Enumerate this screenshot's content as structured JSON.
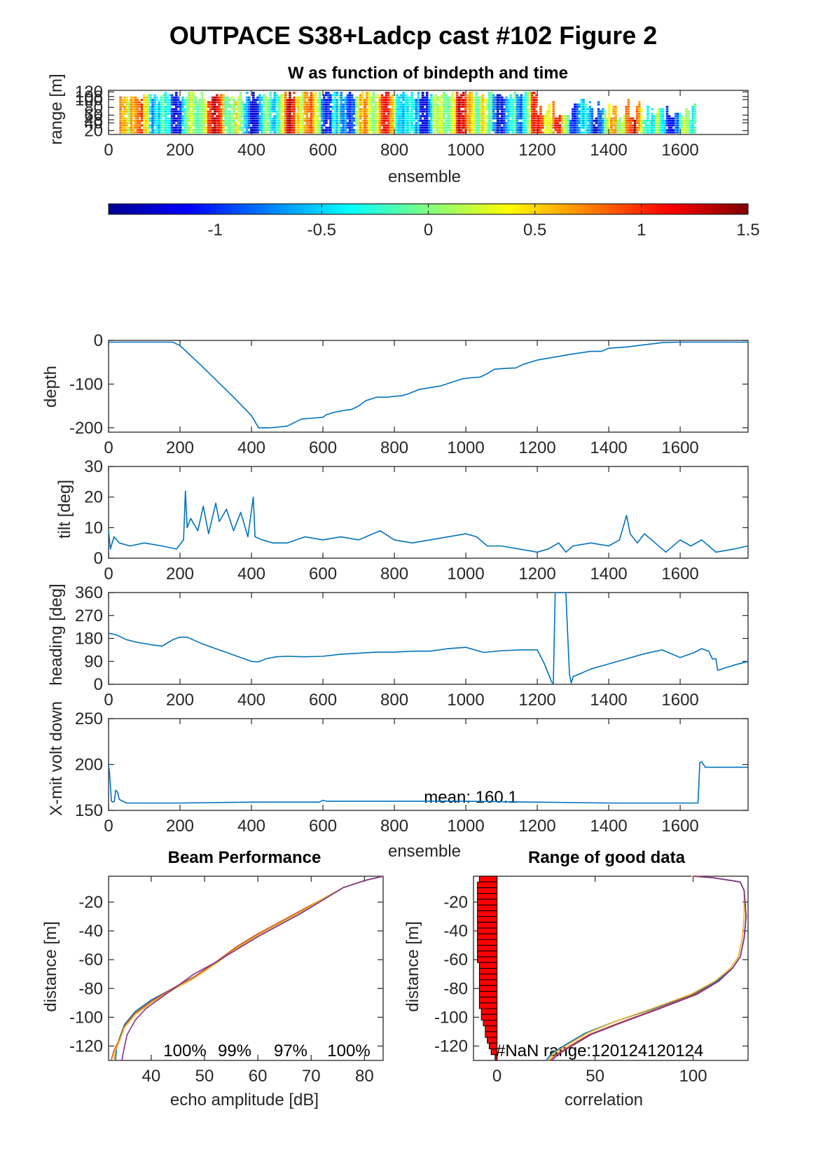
{
  "figure": {
    "title": "OUTPACE S38+Ladcp cast #102 Figure 2"
  },
  "colors": {
    "line": "#0072BD",
    "beam_colors": [
      "#0072BD",
      "#D95319",
      "#EDB120",
      "#7E2F8E"
    ],
    "bar": "#FF0000",
    "axis": "#262626"
  },
  "chart_data": [
    {
      "id": "w-image",
      "type": "heatmap",
      "title": "W as function of bindepth and time",
      "xlabel": "ensemble",
      "ylabel": "range [m]",
      "xlim": [
        0,
        1790
      ],
      "ylim": [
        10,
        124
      ],
      "xticks": [
        0,
        200,
        400,
        600,
        800,
        1000,
        1200,
        1400,
        1600
      ],
      "yticks": [
        20,
        40,
        48,
        60,
        80,
        100,
        108,
        120
      ],
      "ytick_labels": [
        "20",
        "40",
        "48",
        "60",
        "80",
        "100",
        "108",
        "120"
      ],
      "note": "color image of vertical velocity W; columns are ensembles, rows are range bins",
      "colorbar": {
        "clim": [
          -1.5,
          1.5
        ],
        "ticks": [
          -1,
          -0.5,
          0,
          0.5,
          1,
          1.5
        ],
        "tick_labels": [
          "-1",
          "-0.5",
          "0",
          "0.5",
          "1",
          "1.5"
        ]
      }
    },
    {
      "id": "depth",
      "type": "line",
      "ylabel": "depth",
      "xlim": [
        0,
        1790
      ],
      "ylim": [
        -210,
        0
      ],
      "xticks": [
        0,
        200,
        400,
        600,
        800,
        1000,
        1200,
        1400,
        1600
      ],
      "yticks": [
        0,
        -100,
        -200
      ],
      "x": [
        0,
        100,
        180,
        200,
        250,
        300,
        350,
        400,
        420,
        450,
        480,
        500,
        540,
        570,
        600,
        610,
        630,
        660,
        680,
        700,
        720,
        750,
        780,
        800,
        820,
        840,
        870,
        900,
        930,
        960,
        990,
        1020,
        1040,
        1060,
        1080,
        1110,
        1140,
        1160,
        1200,
        1250,
        1300,
        1350,
        1380,
        1400,
        1450,
        1500,
        1530,
        1550,
        1600,
        1700,
        1790
      ],
      "y": [
        -4,
        -4,
        -4,
        -12,
        -50,
        -90,
        -130,
        -172,
        -200,
        -200,
        -198,
        -196,
        -180,
        -178,
        -176,
        -170,
        -165,
        -160,
        -158,
        -150,
        -138,
        -130,
        -130,
        -128,
        -127,
        -122,
        -112,
        -108,
        -104,
        -96,
        -88,
        -85,
        -84,
        -76,
        -66,
        -64,
        -63,
        -55,
        -45,
        -38,
        -31,
        -25,
        -25,
        -18,
        -15,
        -10,
        -7,
        -5,
        -4,
        -4,
        -4
      ]
    },
    {
      "id": "tilt",
      "type": "line",
      "ylabel": "tilt [deg]",
      "xlim": [
        0,
        1790
      ],
      "ylim": [
        0,
        30
      ],
      "xticks": [
        0,
        200,
        400,
        600,
        800,
        1000,
        1200,
        1400,
        1600
      ],
      "yticks": [
        0,
        10,
        20,
        30
      ],
      "x": [
        0,
        5,
        15,
        30,
        60,
        100,
        150,
        190,
        210,
        215,
        220,
        230,
        250,
        265,
        280,
        300,
        310,
        330,
        350,
        370,
        390,
        405,
        410,
        430,
        460,
        500,
        550,
        600,
        650,
        700,
        740,
        760,
        800,
        850,
        900,
        950,
        1000,
        1030,
        1060,
        1100,
        1150,
        1200,
        1230,
        1260,
        1280,
        1300,
        1350,
        1400,
        1430,
        1450,
        1460,
        1480,
        1500,
        1530,
        1560,
        1600,
        1630,
        1660,
        1700,
        1750,
        1790
      ],
      "y": [
        9,
        3,
        7,
        5,
        4,
        5,
        4,
        3,
        6,
        22,
        10,
        13,
        9,
        17,
        8,
        18,
        12,
        16,
        9,
        15,
        7,
        20,
        7,
        6,
        5,
        5,
        7,
        6,
        7,
        6,
        8,
        9,
        6,
        5,
        6,
        7,
        8,
        7,
        4,
        4,
        3,
        2,
        3,
        5,
        2,
        4,
        5,
        4,
        6,
        14,
        8,
        5,
        8,
        5,
        2,
        6,
        4,
        6,
        2,
        3,
        4
      ]
    },
    {
      "id": "heading",
      "type": "line",
      "ylabel": "heading [deg]",
      "xlim": [
        0,
        1790
      ],
      "ylim": [
        0,
        360
      ],
      "xticks": [
        0,
        200,
        400,
        600,
        800,
        1000,
        1200,
        1400,
        1600
      ],
      "yticks": [
        0,
        90,
        180,
        270,
        360
      ],
      "x": [
        0,
        20,
        50,
        80,
        120,
        150,
        180,
        200,
        220,
        260,
        300,
        330,
        360,
        400,
        420,
        440,
        470,
        500,
        550,
        600,
        650,
        700,
        750,
        800,
        850,
        900,
        950,
        1000,
        1050,
        1100,
        1150,
        1200,
        1220,
        1240,
        1245,
        1250,
        1280,
        1285,
        1290,
        1295,
        1300,
        1350,
        1400,
        1450,
        1500,
        1550,
        1600,
        1640,
        1660,
        1680,
        1690,
        1700,
        1705,
        1750,
        1790
      ],
      "y": [
        200,
        195,
        175,
        165,
        155,
        150,
        175,
        185,
        185,
        160,
        140,
        125,
        110,
        90,
        88,
        100,
        108,
        110,
        108,
        110,
        118,
        122,
        126,
        126,
        130,
        130,
        140,
        145,
        125,
        132,
        135,
        135,
        80,
        10,
        2,
        360,
        360,
        200,
        40,
        5,
        30,
        60,
        80,
        100,
        120,
        135,
        105,
        125,
        140,
        130,
        100,
        100,
        55,
        75,
        90
      ]
    },
    {
      "id": "xmit-volt",
      "type": "line",
      "ylabel": "X-mit volt down",
      "xlabel": "ensemble",
      "annotation": "mean: 160.1",
      "xlim": [
        0,
        1790
      ],
      "ylim": [
        150,
        250
      ],
      "xticks": [
        0,
        200,
        400,
        600,
        800,
        1000,
        1200,
        1400,
        1600
      ],
      "yticks": [
        150,
        200,
        250
      ],
      "x": [
        0,
        3,
        8,
        12,
        16,
        20,
        25,
        30,
        40,
        50,
        60,
        80,
        200,
        400,
        590,
        600,
        610,
        800,
        1000,
        1200,
        1400,
        1640,
        1650,
        1655,
        1660,
        1670,
        1700,
        1790
      ],
      "y": [
        200,
        190,
        160,
        159,
        160,
        172,
        170,
        162,
        160,
        158,
        158,
        158,
        158,
        159,
        159,
        161,
        160,
        160,
        160,
        159,
        158,
        158,
        158,
        202,
        203,
        197,
        197,
        197
      ]
    },
    {
      "id": "beam-performance",
      "type": "line",
      "title": "Beam Performance",
      "xlabel": "echo amplitude [dB]",
      "ylabel": "distance [m]",
      "xlim": [
        32,
        83.5
      ],
      "ylim": [
        -130,
        -2
      ],
      "xticks": [
        40,
        50,
        60,
        70,
        80
      ],
      "yticks": [
        -20,
        -40,
        -60,
        -80,
        -100,
        -120
      ],
      "annotations": [
        "100%",
        "99%",
        "97%",
        "100%"
      ],
      "series": [
        {
          "x": [
            83.5,
            80,
            76,
            72,
            68,
            64,
            60,
            56,
            52,
            48,
            44,
            40,
            37,
            35,
            34,
            33.5,
            33.3
          ],
          "y": [
            -2,
            -5,
            -10,
            -18,
            -27,
            -35,
            -43,
            -52,
            -62,
            -72,
            -80,
            -88,
            -96,
            -105,
            -115,
            -122,
            -130
          ]
        },
        {
          "x": [
            83.5,
            80,
            76,
            72,
            68,
            64,
            60,
            56,
            52,
            48,
            44,
            40,
            37,
            35,
            34,
            33,
            32.5
          ],
          "y": [
            -2,
            -5,
            -10,
            -18,
            -26,
            -34,
            -42,
            -51,
            -62,
            -72,
            -80,
            -89,
            -97,
            -106,
            -116,
            -123,
            -130
          ]
        },
        {
          "x": [
            83.5,
            80,
            76,
            72,
            68,
            64,
            60,
            56,
            52,
            48,
            44,
            40,
            37,
            35,
            34,
            33.2,
            33
          ],
          "y": [
            -2,
            -5,
            -10,
            -18,
            -27,
            -35,
            -43,
            -52,
            -63,
            -73,
            -81,
            -90,
            -98,
            -107,
            -117,
            -124,
            -130
          ]
        },
        {
          "x": [
            83.5,
            80,
            76,
            72,
            68,
            64,
            60,
            56,
            52,
            48,
            45,
            42,
            39,
            37,
            35.5,
            35,
            34.5
          ],
          "y": [
            -2,
            -5,
            -10,
            -19,
            -28,
            -36,
            -44,
            -53,
            -62,
            -70,
            -78,
            -86,
            -94,
            -102,
            -112,
            -120,
            -130
          ]
        }
      ]
    },
    {
      "id": "range-good-data",
      "type": "line",
      "title": "Range of good data",
      "xlabel": "correlation",
      "ylabel": "distance [m]",
      "annotation": "#NaN range:120124120124",
      "xlim": [
        -12,
        128
      ],
      "ylim": [
        -130,
        -2
      ],
      "xticks": [
        0,
        50,
        100
      ],
      "yticks": [
        -20,
        -40,
        -60,
        -80,
        -100,
        -120
      ],
      "series": [
        {
          "x": [
            100,
            110,
            124,
            126,
            127,
            126,
            124,
            120,
            112,
            100,
            80,
            60,
            45,
            35,
            28,
            25
          ],
          "y": [
            -2,
            -3,
            -6,
            -12,
            -30,
            -45,
            -58,
            -66,
            -75,
            -84,
            -94,
            -103,
            -111,
            -119,
            -125,
            -130
          ]
        },
        {
          "x": [
            101,
            110,
            124,
            126,
            127,
            126,
            124,
            120,
            113,
            101,
            82,
            62,
            47,
            37,
            30,
            27
          ],
          "y": [
            -2,
            -3,
            -6,
            -12,
            -30,
            -45,
            -58,
            -66,
            -75,
            -84,
            -94,
            -104,
            -112,
            -120,
            -126,
            -130
          ]
        },
        {
          "x": [
            99,
            110,
            124,
            126,
            126,
            125,
            123,
            119,
            111,
            99,
            79,
            60,
            46,
            36,
            29,
            26
          ],
          "y": [
            -2,
            -3,
            -6,
            -12,
            -30,
            -45,
            -58,
            -66,
            -75,
            -84,
            -94,
            -103,
            -111,
            -119,
            -125,
            -130
          ]
        },
        {
          "x": [
            100,
            110,
            124,
            126,
            127,
            126,
            124,
            120,
            113,
            102,
            83,
            63,
            48,
            38,
            31,
            28
          ],
          "y": [
            -2,
            -3,
            -6,
            -12,
            -30,
            -45,
            -58,
            -66,
            -75,
            -84,
            -94,
            -104,
            -112,
            -120,
            -126,
            -130
          ]
        }
      ],
      "bars": {
        "y": [
          -4,
          -8,
          -12,
          -16,
          -20,
          -24,
          -28,
          -32,
          -36,
          -40,
          -44,
          -48,
          -52,
          -56,
          -60,
          -64,
          -68,
          -72,
          -76,
          -80,
          -84,
          -88,
          -92,
          -96,
          -100,
          -104,
          -108,
          -112,
          -116,
          -120,
          -124,
          -128
        ],
        "x": [
          -9,
          -10,
          -10,
          -10,
          -10,
          -10,
          -10,
          -10,
          -10,
          -10,
          -10,
          -10,
          -10,
          -10,
          -10,
          -9,
          -9,
          -9,
          -9,
          -9,
          -9,
          -9,
          -9,
          -8,
          -8,
          -7,
          -6,
          -6,
          -5,
          -4,
          -3,
          -1
        ]
      }
    }
  ]
}
